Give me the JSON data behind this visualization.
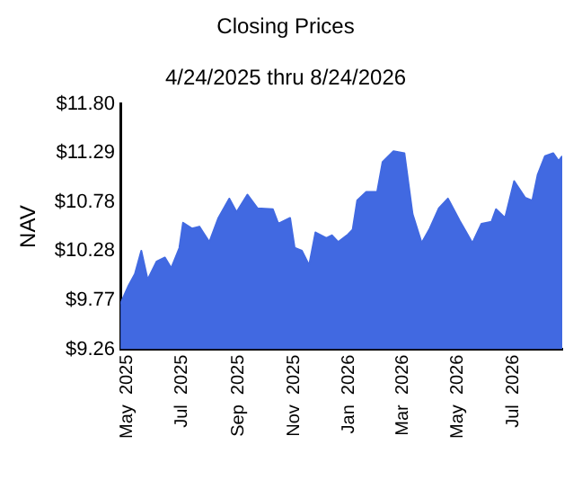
{
  "chart_data": {
    "type": "area",
    "title": "Closing Prices",
    "subtitle": "4/24/2025 thru 8/24/2026",
    "ylabel": "NAV",
    "x": [
      "2025-04-24",
      "2025-05-03",
      "2025-05-10",
      "2025-05-17",
      "2025-05-24",
      "2025-06-03",
      "2025-06-12",
      "2025-06-19",
      "2025-06-28",
      "2025-07-02",
      "2025-07-12",
      "2025-07-20",
      "2025-07-31",
      "2025-08-10",
      "2025-08-22",
      "2025-08-30",
      "2025-09-11",
      "2025-09-22",
      "2025-10-09",
      "2025-10-15",
      "2025-10-28",
      "2025-11-02",
      "2025-11-10",
      "2025-11-18",
      "2025-11-25",
      "2025-12-07",
      "2025-12-13",
      "2025-12-20",
      "2025-12-31",
      "2026-01-05",
      "2026-01-10",
      "2026-01-20",
      "2026-02-01",
      "2026-02-07",
      "2026-02-19",
      "2026-03-03",
      "2026-03-12",
      "2026-03-22",
      "2026-03-31",
      "2026-04-10",
      "2026-04-20",
      "2026-05-03",
      "2026-05-17",
      "2026-05-27",
      "2026-06-07",
      "2026-06-12",
      "2026-06-22",
      "2026-07-02",
      "2026-07-14",
      "2026-07-22",
      "2026-07-28",
      "2026-08-05",
      "2026-08-14",
      "2026-08-20",
      "2026-08-24"
    ],
    "series": [
      {
        "color": "#4169e1",
        "values": [
          9.73,
          9.92,
          10.04,
          10.28,
          9.98,
          10.17,
          10.21,
          10.1,
          10.31,
          10.57,
          10.51,
          10.53,
          10.37,
          10.62,
          10.82,
          10.68,
          10.86,
          10.72,
          10.71,
          10.56,
          10.62,
          10.31,
          10.28,
          10.13,
          10.47,
          10.41,
          10.44,
          10.37,
          10.45,
          10.5,
          10.8,
          10.89,
          10.89,
          11.2,
          11.31,
          11.29,
          10.66,
          10.36,
          10.51,
          10.72,
          10.82,
          10.59,
          10.36,
          10.56,
          10.58,
          10.71,
          10.62,
          11.0,
          10.83,
          10.8,
          11.07,
          11.26,
          11.29,
          11.21,
          11.26
        ]
      }
    ],
    "xlim": [
      "2025-04-24",
      "2026-08-24"
    ],
    "xticks": [
      {
        "value": "2025-05-01",
        "label": "May 2025"
      },
      {
        "value": "2025-07-01",
        "label": "Jul 2025"
      },
      {
        "value": "2025-09-01",
        "label": "Sep 2025"
      },
      {
        "value": "2025-11-01",
        "label": "Nov 2025"
      },
      {
        "value": "2026-01-01",
        "label": "Jan 2026"
      },
      {
        "value": "2026-03-01",
        "label": "Mar 2026"
      },
      {
        "value": "2026-05-01",
        "label": "May 2026"
      },
      {
        "value": "2026-07-01",
        "label": "Jul 2026"
      }
    ],
    "ylim": [
      9.26,
      11.8
    ],
    "yticks": [
      {
        "value": 9.26,
        "label": "$9.26"
      },
      {
        "value": 9.77,
        "label": "$9.77"
      },
      {
        "value": 10.28,
        "label": "$10.28"
      },
      {
        "value": 10.78,
        "label": "$10.78"
      },
      {
        "value": 11.29,
        "label": "$11.29"
      },
      {
        "value": 11.8,
        "label": "$11.80"
      }
    ],
    "grid": false,
    "legend": false,
    "marker": "none"
  }
}
